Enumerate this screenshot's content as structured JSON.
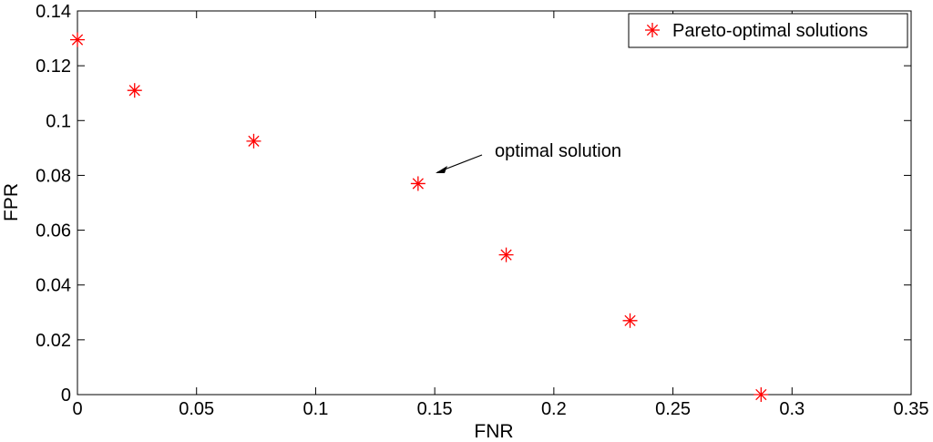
{
  "chart_data": {
    "type": "scatter",
    "xlabel": "FNR",
    "ylabel": "FPR",
    "xlim": [
      0,
      0.35
    ],
    "ylim": [
      0,
      0.14
    ],
    "x_ticks": [
      "0",
      "0.05",
      "0.1",
      "0.15",
      "0.2",
      "0.25",
      "0.3",
      "0.35"
    ],
    "y_ticks": [
      "0",
      "0.02",
      "0.04",
      "0.06",
      "0.08",
      "0.1",
      "0.12",
      "0.14"
    ],
    "grid": false,
    "legend_position": "top-right",
    "series": [
      {
        "name": "Pareto-optimal solutions",
        "marker": "asterisk",
        "color": "#ff0000",
        "x": [
          0.0,
          0.024,
          0.074,
          0.143,
          0.18,
          0.232,
          0.287
        ],
        "y": [
          0.1295,
          0.111,
          0.0925,
          0.077,
          0.051,
          0.027,
          0.0
        ]
      }
    ],
    "annotations": [
      {
        "text": "optimal solution",
        "target": [
          0.143,
          0.077
        ]
      }
    ]
  }
}
